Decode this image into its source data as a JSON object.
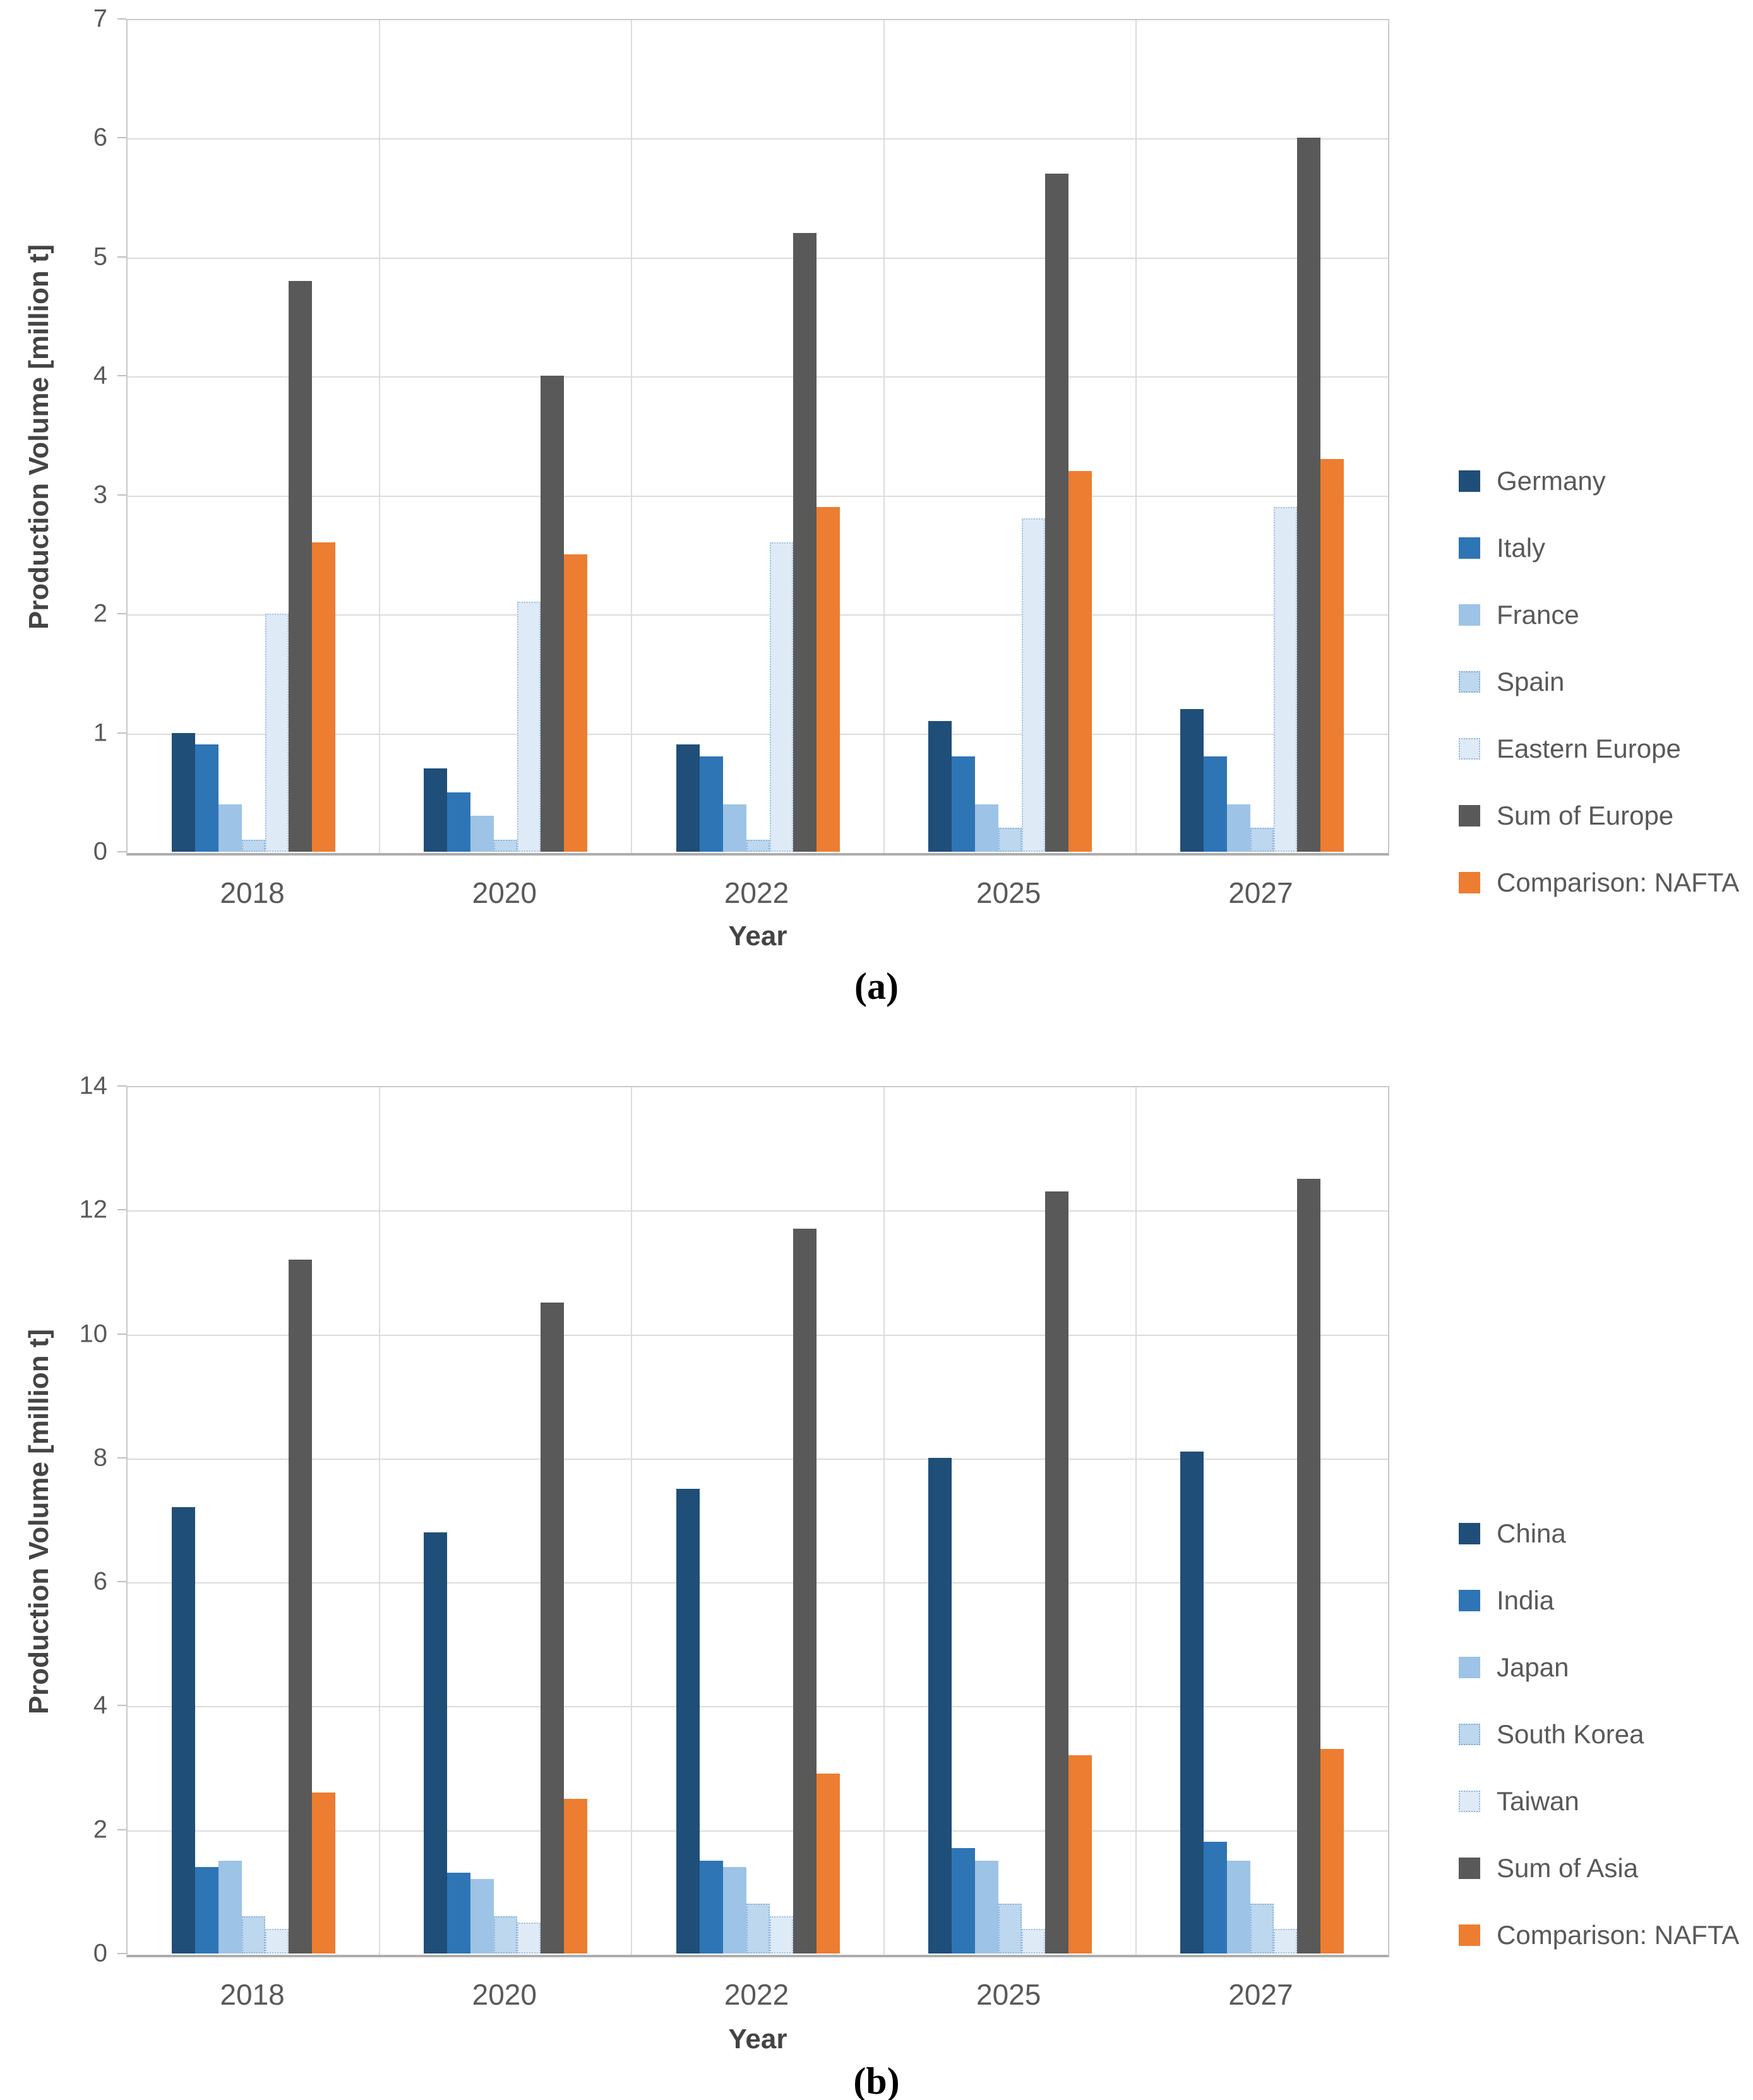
{
  "figure": {
    "y_axis_title": "Production Volume [million t]",
    "x_axis_title": "Year"
  },
  "chart_data": [
    {
      "id": "a",
      "type": "bar",
      "caption": "(a)",
      "xlabel": "Year",
      "ylabel": "Production Volume [million t]",
      "ylim": [
        0,
        7
      ],
      "ytick_step": 1,
      "grid": true,
      "legend_position": "right",
      "categories": [
        "2018",
        "2020",
        "2022",
        "2025",
        "2027"
      ],
      "series": [
        {
          "name": "Germany",
          "color": "#1F4E79",
          "outline": false,
          "values": [
            1.0,
            0.7,
            0.9,
            1.1,
            1.2
          ]
        },
        {
          "name": "Italy",
          "color": "#2E75B6",
          "outline": false,
          "values": [
            0.9,
            0.5,
            0.8,
            0.8,
            0.8
          ]
        },
        {
          "name": "France",
          "color": "#9DC3E6",
          "outline": false,
          "values": [
            0.4,
            0.3,
            0.4,
            0.4,
            0.4
          ]
        },
        {
          "name": "Spain",
          "color": "#BDD7EE",
          "outline": true,
          "values": [
            0.1,
            0.1,
            0.1,
            0.2,
            0.2
          ]
        },
        {
          "name": "Eastern Europe",
          "color": "#DEEBF7",
          "outline": true,
          "values": [
            2.0,
            2.1,
            2.6,
            2.8,
            2.9
          ]
        },
        {
          "name": "Sum of Europe",
          "color": "#595959",
          "outline": false,
          "values": [
            4.8,
            4.0,
            5.2,
            5.7,
            6.0
          ]
        },
        {
          "name": "Comparison: NAFTA",
          "color": "#ED7D31",
          "outline": false,
          "values": [
            2.6,
            2.5,
            2.9,
            3.2,
            3.3
          ]
        }
      ]
    },
    {
      "id": "b",
      "type": "bar",
      "caption": "(b)",
      "xlabel": "Year",
      "ylabel": "Production Volume [million t]",
      "ylim": [
        0,
        14
      ],
      "ytick_step": 2,
      "grid": true,
      "legend_position": "right",
      "categories": [
        "2018",
        "2020",
        "2022",
        "2025",
        "2027"
      ],
      "series": [
        {
          "name": "China",
          "color": "#1F4E79",
          "outline": false,
          "values": [
            7.2,
            6.8,
            7.5,
            8.0,
            8.1
          ]
        },
        {
          "name": "India",
          "color": "#2E75B6",
          "outline": false,
          "values": [
            1.4,
            1.3,
            1.5,
            1.7,
            1.8
          ]
        },
        {
          "name": "Japan",
          "color": "#9DC3E6",
          "outline": false,
          "values": [
            1.5,
            1.2,
            1.4,
            1.5,
            1.5
          ]
        },
        {
          "name": "South Korea",
          "color": "#BDD7EE",
          "outline": true,
          "values": [
            0.6,
            0.6,
            0.8,
            0.8,
            0.8
          ]
        },
        {
          "name": "Taiwan",
          "color": "#DEEBF7",
          "outline": true,
          "values": [
            0.4,
            0.5,
            0.6,
            0.4,
            0.4
          ]
        },
        {
          "name": "Sum of Asia",
          "color": "#595959",
          "outline": false,
          "values": [
            11.2,
            10.5,
            11.7,
            12.3,
            12.5
          ]
        },
        {
          "name": "Comparison: NAFTA",
          "color": "#ED7D31",
          "outline": false,
          "values": [
            2.6,
            2.5,
            2.9,
            3.2,
            3.3
          ]
        }
      ]
    }
  ]
}
